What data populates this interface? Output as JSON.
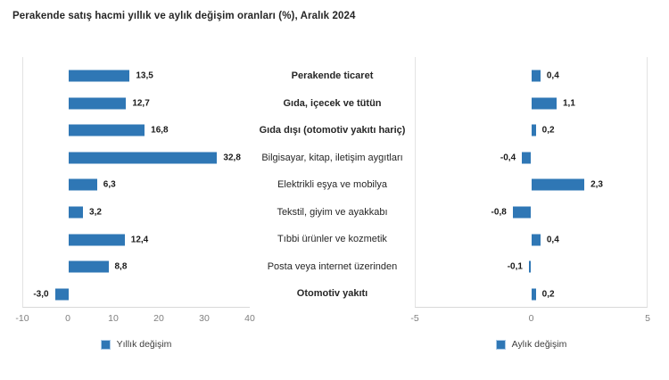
{
  "title": "Perakende satış hacmi yıllık ve aylık değişim oranları (%), Aralık 2024",
  "colors": {
    "bar": "#2F77B5",
    "title_text": "#262626",
    "value_text": "#1a1a1a",
    "axis_text": "#7f7f7f",
    "plot_border": "#e3e3e3"
  },
  "chart_data": {
    "type": "bar",
    "orientation": "horizontal",
    "grid": false,
    "legend_position": "bottom",
    "categories": [
      {
        "label": "Perakende ticaret",
        "bold": true
      },
      {
        "label": "Gıda, içecek ve tütün",
        "bold": true
      },
      {
        "label": "Gıda dışı (otomotiv yakıtı hariç)",
        "bold": true
      },
      {
        "label": "Bilgisayar, kitap, iletişim aygıtları",
        "bold": false
      },
      {
        "label": "Elektrikli eşya ve mobilya",
        "bold": false
      },
      {
        "label": "Tekstil, giyim ve ayakkabı",
        "bold": false
      },
      {
        "label": "Tıbbi ürünler ve kozmetik",
        "bold": false
      },
      {
        "label": "Posta veya internet üzerinden",
        "bold": false
      },
      {
        "label": "Otomotiv yakıtı",
        "bold": true
      }
    ],
    "series": [
      {
        "name": "Yıllık değişim",
        "values": [
          13.5,
          12.7,
          16.8,
          32.8,
          6.3,
          3.2,
          12.4,
          8.8,
          -3.0
        ],
        "display": [
          "13,5",
          "12,7",
          "16,8",
          "32,8",
          "6,3",
          "3,2",
          "12,4",
          "8,8",
          "-3,0"
        ],
        "xlim": [
          -10,
          40
        ],
        "ticks": [
          "-10",
          "0",
          "10",
          "20",
          "30",
          "40"
        ]
      },
      {
        "name": "Aylık değişim",
        "values": [
          0.4,
          1.1,
          0.2,
          -0.4,
          2.3,
          -0.8,
          0.4,
          -0.1,
          0.2
        ],
        "display": [
          "0,4",
          "1,1",
          "0,2",
          "-0,4",
          "2,3",
          "-0,8",
          "0,4",
          "-0,1",
          "0,2"
        ],
        "xlim": [
          -5,
          5
        ],
        "ticks": [
          "-5",
          "0",
          "5"
        ]
      }
    ]
  }
}
